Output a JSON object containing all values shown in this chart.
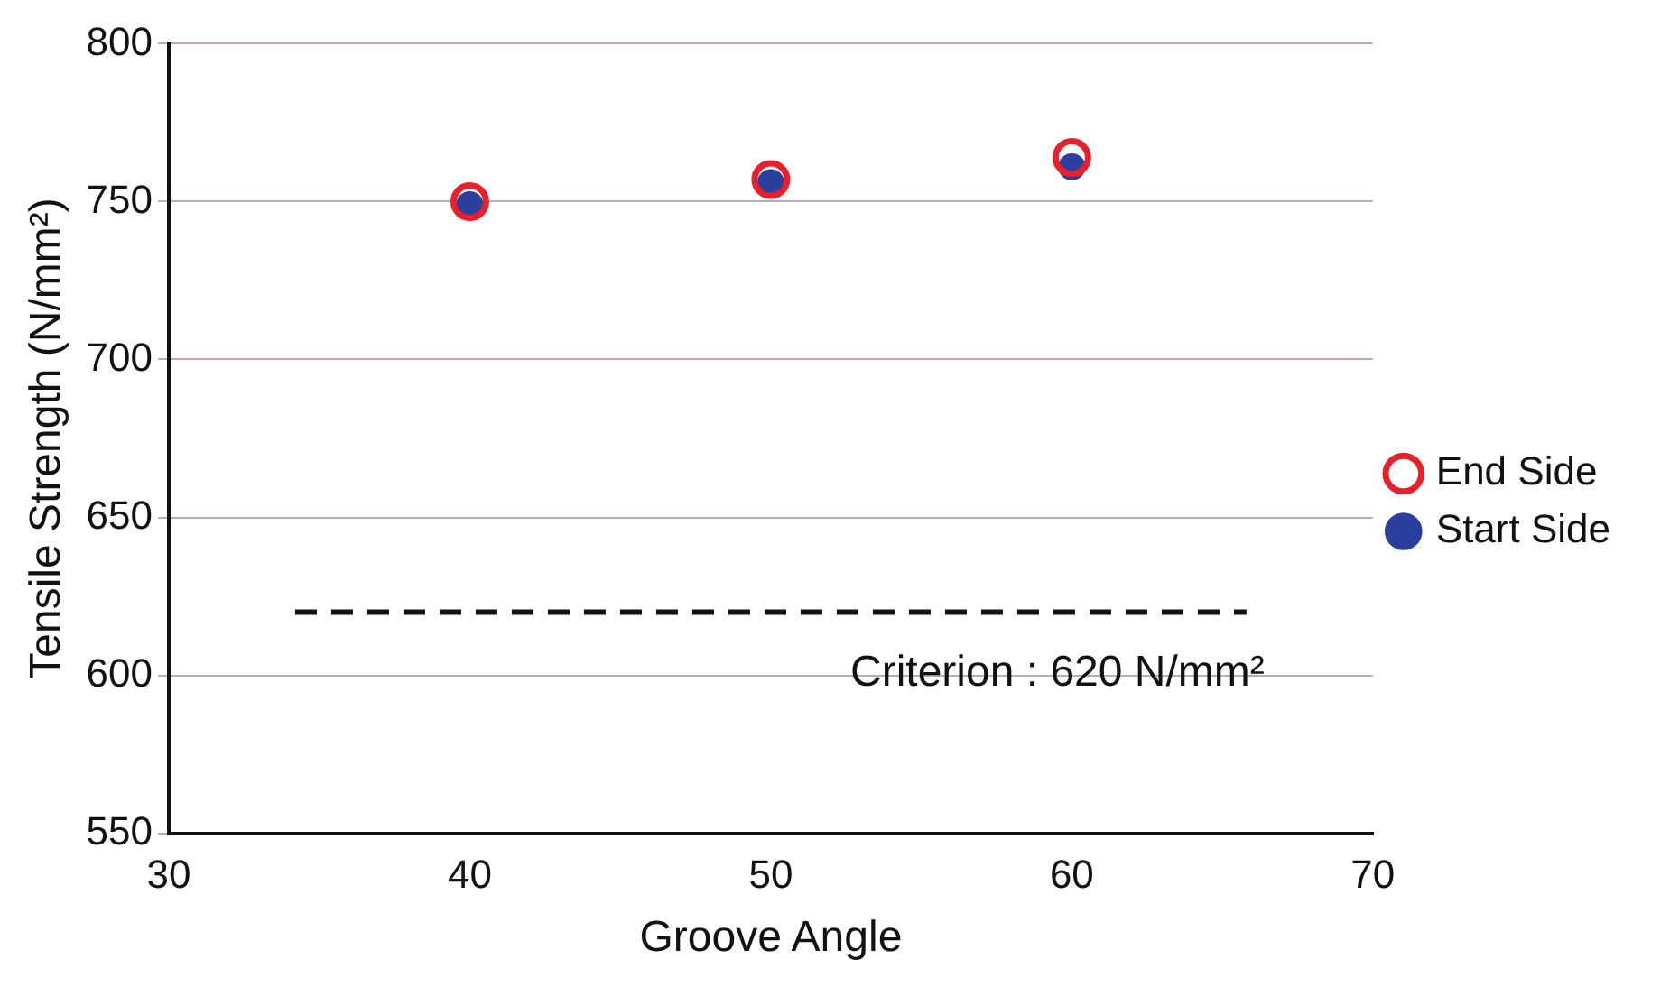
{
  "chart_data": {
    "type": "scatter",
    "xlabel": "Groove Angle",
    "ylabel": "Tensile Strength (N/mm²)",
    "x": [
      40,
      50,
      60
    ],
    "series": [
      {
        "name": "Start Side",
        "color": "#2b3f9e",
        "values": [
          749,
          756,
          761
        ]
      },
      {
        "name": "End Side",
        "color": "#e8202a",
        "values": [
          750,
          757,
          764
        ]
      }
    ],
    "xlim": [
      30,
      70
    ],
    "xticks": [
      30,
      40,
      50,
      60,
      70
    ],
    "ylim": [
      550,
      800
    ],
    "yticks": [
      550,
      600,
      650,
      700,
      750,
      800
    ],
    "grid": "y",
    "legend": "right",
    "marker": "circle",
    "ref_lines": [
      {
        "axis": "y",
        "value": 620,
        "label": "Criterion : 620 N/mm²",
        "line_style": "dashed",
        "color": "#111111"
      }
    ]
  }
}
